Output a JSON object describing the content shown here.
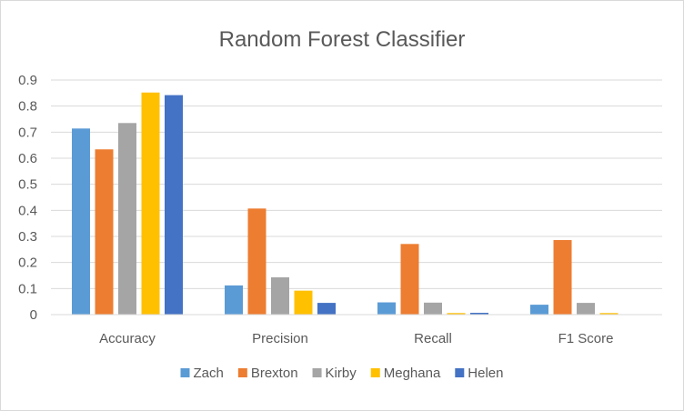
{
  "chart_data": {
    "type": "bar",
    "title": "Random Forest Classifier",
    "xlabel": "",
    "ylabel": "",
    "categories": [
      "Accuracy",
      "Precision",
      "Recall",
      "F1 Score"
    ],
    "series": [
      {
        "name": "Zach",
        "color": "#5b9bd5",
        "values": [
          0.714,
          0.112,
          0.047,
          0.038
        ]
      },
      {
        "name": "Brexton",
        "color": "#ed7d31",
        "values": [
          0.634,
          0.407,
          0.271,
          0.286
        ]
      },
      {
        "name": "Kirby",
        "color": "#a5a5a5",
        "values": [
          0.735,
          0.143,
          0.046,
          0.045
        ]
      },
      {
        "name": "Meghana",
        "color": "#ffc000",
        "values": [
          0.852,
          0.092,
          0.006,
          0.006
        ]
      },
      {
        "name": "Helen",
        "color": "#4472c4",
        "values": [
          0.842,
          0.045,
          0.007,
          0.0
        ]
      }
    ],
    "yticks": [
      "0",
      "0.1",
      "0.2",
      "0.3",
      "0.4",
      "0.5",
      "0.6",
      "0.7",
      "0.8",
      "0.9"
    ],
    "ylim": [
      0,
      0.9
    ],
    "grid": true,
    "legend_position": "bottom"
  }
}
